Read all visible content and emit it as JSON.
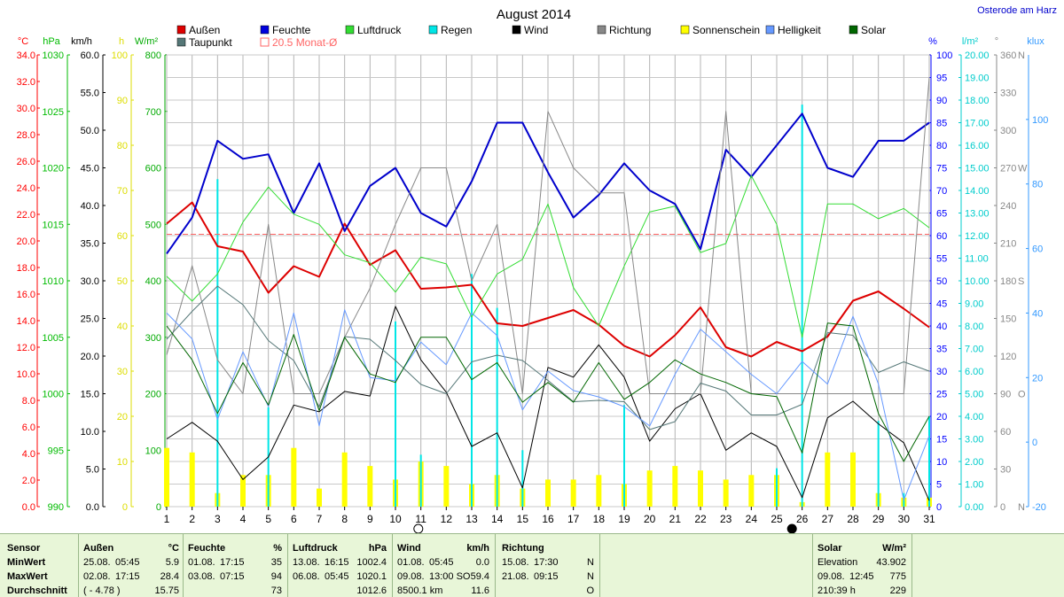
{
  "title": "August 2014",
  "location": "Osterode am Harz",
  "axis_units": {
    "temp": "°C",
    "pressure": "hPa",
    "wind": "km/h",
    "sun_h": "h",
    "solar": "W/m²",
    "humidity": "%",
    "rain": "l/m²",
    "direction": "°",
    "brightness": "klux"
  },
  "axis_colors": {
    "temp": "#ff0000",
    "pressure": "#00bb00",
    "wind": "#000000",
    "sun_h": "#dddd00",
    "solar": "#00aa00",
    "humidity": "#0000ff",
    "rain": "#00cccc",
    "direction": "#888888",
    "brightness": "#3399ff"
  },
  "legend": [
    {
      "label": "Außen",
      "color": "#dd0000",
      "icon": "filled-square"
    },
    {
      "label": "Feuchte",
      "color": "#0000dd",
      "icon": "filled-square"
    },
    {
      "label": "Luftdruck",
      "color": "#33dd33",
      "icon": "filled-square"
    },
    {
      "label": "Regen",
      "color": "#00e6e6",
      "icon": "filled-square"
    },
    {
      "label": "Wind",
      "color": "#000000",
      "icon": "filled-square"
    },
    {
      "label": "Richtung",
      "color": "#888888",
      "icon": "filled-square"
    },
    {
      "label": "Sonnenschein",
      "color": "#ffff00",
      "icon": "filled-square"
    },
    {
      "label": "Helligkeit",
      "color": "#6699ff",
      "icon": "filled-square"
    },
    {
      "label": "Solar",
      "color": "#006600",
      "icon": "filled-square"
    },
    {
      "label": "Taupunkt",
      "color": "#557777",
      "icon": "filled-square"
    },
    {
      "label": "20.5 Monat-Ø",
      "color": "#ff6666",
      "icon": "outline-square"
    }
  ],
  "chart_data": {
    "type": "line",
    "x": [
      1,
      2,
      3,
      4,
      5,
      6,
      7,
      8,
      9,
      10,
      11,
      12,
      13,
      14,
      15,
      16,
      17,
      18,
      19,
      20,
      21,
      22,
      23,
      24,
      25,
      26,
      27,
      28,
      29,
      30,
      31
    ],
    "xlim": [
      1,
      31
    ],
    "grid": true,
    "axes": {
      "temp": {
        "min": 0,
        "max": 34,
        "ticks": [
          "0.0",
          "2.0",
          "4.0",
          "6.0",
          "8.0",
          "10.0",
          "12.0",
          "14.0",
          "16.0",
          "18.0",
          "20.0",
          "22.0",
          "24.0",
          "26.0",
          "28.0",
          "30.0",
          "32.0",
          "34.0"
        ]
      },
      "pressure": {
        "min": 990,
        "max": 1030,
        "ticks": [
          "990",
          "995",
          "1000",
          "1005",
          "1010",
          "1015",
          "1020",
          "1025",
          "1030"
        ]
      },
      "wind": {
        "min": 0,
        "max": 60,
        "ticks": [
          "0.0",
          "5.0",
          "10.0",
          "15.0",
          "20.0",
          "25.0",
          "30.0",
          "35.0",
          "40.0",
          "45.0",
          "50.0",
          "55.0",
          "60.0"
        ]
      },
      "sun_h": {
        "min": 0,
        "max": 100,
        "ticks": [
          "0",
          "10",
          "20",
          "30",
          "40",
          "50",
          "60",
          "70",
          "80",
          "90",
          "100"
        ]
      },
      "solar": {
        "min": 0,
        "max": 800,
        "ticks": [
          "0",
          "100",
          "200",
          "300",
          "400",
          "500",
          "600",
          "700",
          "800"
        ]
      },
      "humidity": {
        "min": 0,
        "max": 100,
        "ticks": [
          "0",
          "5",
          "10",
          "15",
          "20",
          "25",
          "30",
          "35",
          "40",
          "45",
          "50",
          "55",
          "60",
          "65",
          "70",
          "75",
          "80",
          "85",
          "90",
          "95",
          "100"
        ]
      },
      "rain": {
        "min": 0,
        "max": 20,
        "ticks": [
          "0.00",
          "1.00",
          "2.00",
          "3.00",
          "4.00",
          "5.00",
          "6.00",
          "7.00",
          "8.00",
          "9.00",
          "10.00",
          "11.00",
          "12.00",
          "13.00",
          "14.00",
          "15.00",
          "16.00",
          "17.00",
          "18.00",
          "19.00",
          "20.00"
        ]
      },
      "direction": {
        "min": 0,
        "max": 360,
        "ticks": [
          "0",
          "30",
          "60",
          "90",
          "120",
          "150",
          "180",
          "210",
          "240",
          "270",
          "300",
          "330",
          "360"
        ],
        "letters": [
          {
            "v": 0,
            "t": "N"
          },
          {
            "v": 90,
            "t": "O"
          },
          {
            "v": 180,
            "t": "S"
          },
          {
            "v": 270,
            "t": "W"
          },
          {
            "v": 360,
            "t": "N"
          }
        ]
      },
      "brightness": {
        "min": -20,
        "max": 120,
        "ticks": [
          "-20",
          "0",
          "20",
          "40",
          "60",
          "80",
          "100"
        ]
      }
    },
    "monthly_avg_temp": 20.5,
    "series": [
      {
        "name": "Außen",
        "axis": "temp",
        "color": "#dd0000",
        "width": 2,
        "values": [
          21.3,
          22.9,
          19.6,
          19.2,
          16.1,
          18.1,
          17.3,
          21.3,
          18.2,
          19.3,
          16.4,
          16.5,
          16.7,
          13.8,
          13.6,
          14.2,
          14.8,
          13.7,
          12.1,
          11.3,
          12.9,
          15.0,
          12.0,
          11.3,
          12.4,
          11.7,
          12.8,
          15.5,
          16.2,
          14.9,
          13.5
        ]
      },
      {
        "name": "Feuchte",
        "axis": "humidity",
        "color": "#0000cc",
        "width": 2,
        "values": [
          56,
          64,
          81,
          77,
          78,
          65,
          76,
          61,
          71,
          75,
          65,
          62,
          72,
          85,
          85,
          74,
          64,
          69,
          76,
          70,
          67,
          57,
          79,
          73,
          80,
          87,
          75,
          73,
          81,
          81,
          85
        ]
      },
      {
        "name": "Luftdruck",
        "axis": "pressure",
        "color": "#33dd33",
        "width": 1,
        "values": [
          1010.4,
          1008.2,
          1010.6,
          1015.2,
          1018.3,
          1015.9,
          1015.0,
          1012.3,
          1011.6,
          1009.0,
          1012.1,
          1011.5,
          1006.8,
          1010.6,
          1011.9,
          1016.8,
          1009.4,
          1006.0,
          1011.3,
          1016.1,
          1016.6,
          1012.5,
          1013.3,
          1019.3,
          1015.0,
          1005.0,
          1016.8,
          1016.8,
          1015.5,
          1016.4,
          1014.7
        ]
      },
      {
        "name": "Wind",
        "axis": "wind",
        "color": "#000000",
        "width": 1,
        "values": [
          9.0,
          11.2,
          8.7,
          3.6,
          6.6,
          13.5,
          12.6,
          15.3,
          14.7,
          26.6,
          19.5,
          15.2,
          8.0,
          9.8,
          2.5,
          18.5,
          17.2,
          21.5,
          17.2,
          8.7,
          13.0,
          15.0,
          7.5,
          9.8,
          8.0,
          1.2,
          11.8,
          14.0,
          11.0,
          8.5,
          0.8
        ]
      },
      {
        "name": "Richtung",
        "axis": "direction",
        "color": "#888888",
        "width": 1,
        "values": [
          121,
          192,
          117,
          90,
          225,
          90,
          90,
          135,
          174,
          225,
          270,
          270,
          180,
          225,
          90,
          315,
          270,
          250,
          250,
          90,
          90,
          90,
          315,
          90,
          90,
          90,
          90,
          90,
          90,
          90,
          342
        ]
      },
      {
        "name": "Taupunkt",
        "axis": "temp",
        "color": "#557777",
        "width": 1,
        "values": [
          12.6,
          14.7,
          16.6,
          15.2,
          12.5,
          11.0,
          7.5,
          12.8,
          12.6,
          11.0,
          9.2,
          8.5,
          10.9,
          11.4,
          11.0,
          9.5,
          7.9,
          8.0,
          7.9,
          5.8,
          6.4,
          9.3,
          8.7,
          6.9,
          6.9,
          7.7,
          13.1,
          12.9,
          10.1,
          10.9,
          10.2
        ]
      },
      {
        "name": "Helligkeit",
        "axis": "brightness",
        "color": "#6699ff",
        "width": 1,
        "values": [
          40,
          32,
          7,
          28,
          11,
          40,
          5,
          41,
          20,
          19,
          31,
          24,
          40,
          33,
          10,
          22,
          16,
          14,
          11,
          5,
          21,
          35,
          28,
          21,
          15,
          25,
          18,
          39,
          18,
          -18,
          2
        ]
      },
      {
        "name": "Solar",
        "axis": "solar",
        "color": "#006600",
        "width": 1,
        "values": [
          320,
          260,
          165,
          255,
          180,
          305,
          170,
          300,
          235,
          220,
          300,
          300,
          225,
          255,
          185,
          220,
          185,
          255,
          190,
          220,
          260,
          235,
          220,
          200,
          195,
          95,
          325,
          320,
          165,
          80,
          160
        ]
      }
    ],
    "bars": [
      {
        "name": "Regen",
        "axis": "rain",
        "color": "#00e6e6",
        "values": [
          0,
          0,
          14.5,
          0,
          4.4,
          0,
          0,
          0,
          0,
          8.2,
          2.3,
          0,
          10.3,
          8.8,
          2.5,
          0,
          0,
          0,
          4.5,
          0,
          0,
          0,
          0,
          0,
          1.7,
          17.8,
          0,
          0,
          3.8,
          0.6,
          4.0
        ]
      },
      {
        "name": "Sonnenschein",
        "axis": "sun_h",
        "color": "#ffff00",
        "values": [
          13,
          12,
          3,
          7,
          7,
          13,
          4,
          12,
          9,
          6,
          10,
          9,
          5,
          7,
          4,
          6,
          6,
          7,
          5,
          8,
          9,
          8,
          6,
          7,
          7,
          1,
          12,
          12,
          3,
          2,
          2
        ]
      }
    ]
  },
  "footer": {
    "sensor": {
      "header": "Sensor",
      "rows": [
        "MinWert",
        "MaxWert",
        "Durchschnitt"
      ]
    },
    "aussen": {
      "header": "Außen",
      "unit": "°C",
      "rows": [
        [
          "25.08.",
          "05:45",
          "5.9"
        ],
        [
          "02.08.",
          "17:15",
          "28.4"
        ],
        [
          "( - 4.78 )",
          "",
          "15.75"
        ]
      ]
    },
    "feuchte": {
      "header": "Feuchte",
      "unit": "%",
      "rows": [
        [
          "01.08.",
          "17:15",
          "35"
        ],
        [
          "03.08.",
          "07:15",
          "94"
        ],
        [
          "",
          "",
          "73"
        ]
      ]
    },
    "luftdruck": {
      "header": "Luftdruck",
      "unit": "hPa",
      "rows": [
        [
          "13.08.",
          "16:15",
          "1002.4"
        ],
        [
          "06.08.",
          "05:45",
          "1020.1"
        ],
        [
          "",
          "",
          "1012.6"
        ]
      ]
    },
    "wind": {
      "header": "Wind",
      "unit": "km/h",
      "rows": [
        [
          "01.08.",
          "05:45",
          "0.0"
        ],
        [
          "09.08.",
          "13:00 SO",
          "59.4"
        ],
        [
          "8500.1 km",
          "",
          "11.6"
        ]
      ]
    },
    "richtung": {
      "header": "Richtung",
      "rows": [
        [
          "15.08.",
          "17:30",
          "N"
        ],
        [
          "21.08.",
          "09:15",
          "N"
        ],
        [
          "",
          "",
          "O"
        ]
      ]
    },
    "solar": {
      "header": "Solar",
      "unit": "W/m²",
      "rows": [
        [
          "Elevation",
          "",
          "43.902"
        ],
        [
          "09.08.",
          "12:45",
          "775"
        ],
        [
          "210:39 h",
          "",
          "229"
        ]
      ]
    }
  }
}
